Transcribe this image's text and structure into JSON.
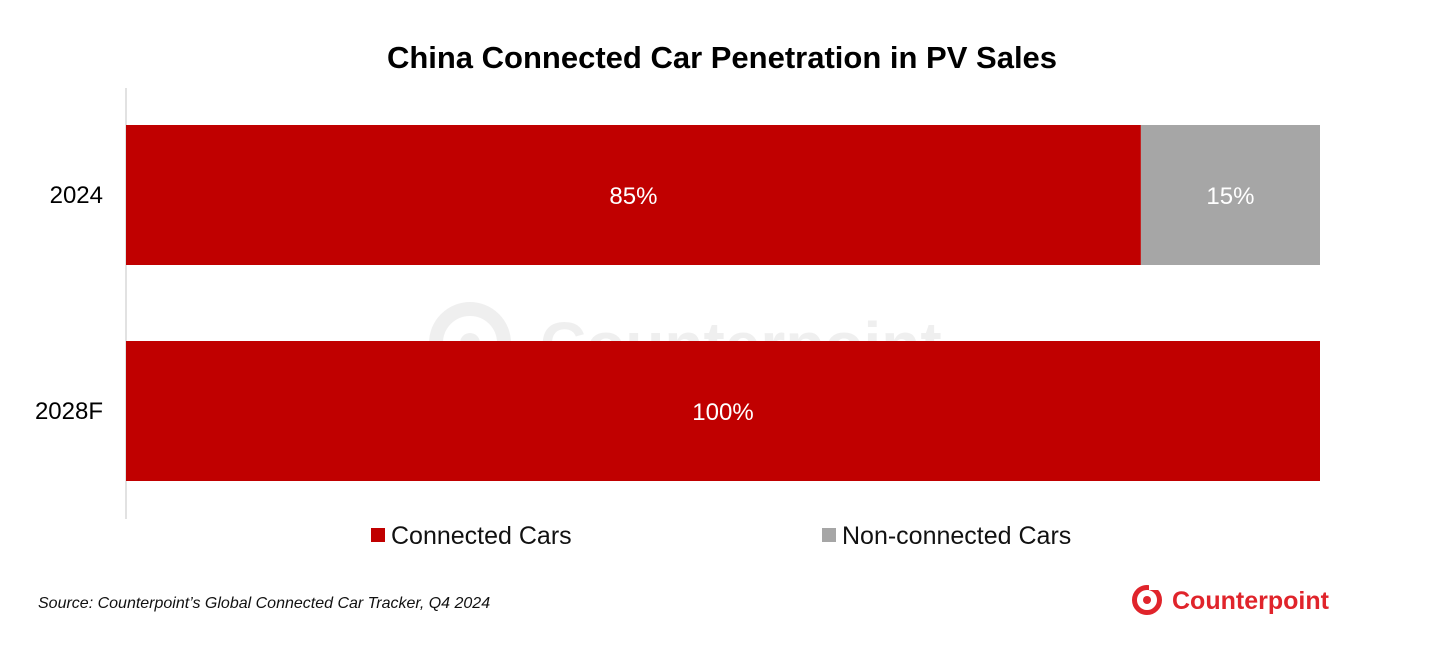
{
  "colors": {
    "connected": "#C00000",
    "non_connected": "#A6A6A6",
    "brand": "#E0242B"
  },
  "footer": {
    "source": "Source: Counterpoint’s Global Connected Car Tracker, Q4 2024",
    "brand_name": "Counterpoint",
    "brand_icon": "counterpoint-logo-icon"
  },
  "watermark": {
    "text": "Counterpoint"
  },
  "chart_data": {
    "type": "bar",
    "orientation": "horizontal",
    "stacked": true,
    "title": "China Connected Car Penetration in PV Sales",
    "xlabel": "",
    "ylabel": "",
    "categories": [
      "2024",
      "2028F"
    ],
    "xlim": [
      0,
      100
    ],
    "grid": false,
    "legend_position": "bottom",
    "series": [
      {
        "name": "Connected Cars",
        "values": [
          85,
          100
        ],
        "labels": [
          "85%",
          "100%"
        ],
        "color_key": "connected"
      },
      {
        "name": "Non-connected Cars",
        "values": [
          15,
          0
        ],
        "labels": [
          "15%",
          ""
        ],
        "color_key": "non_connected"
      }
    ]
  }
}
